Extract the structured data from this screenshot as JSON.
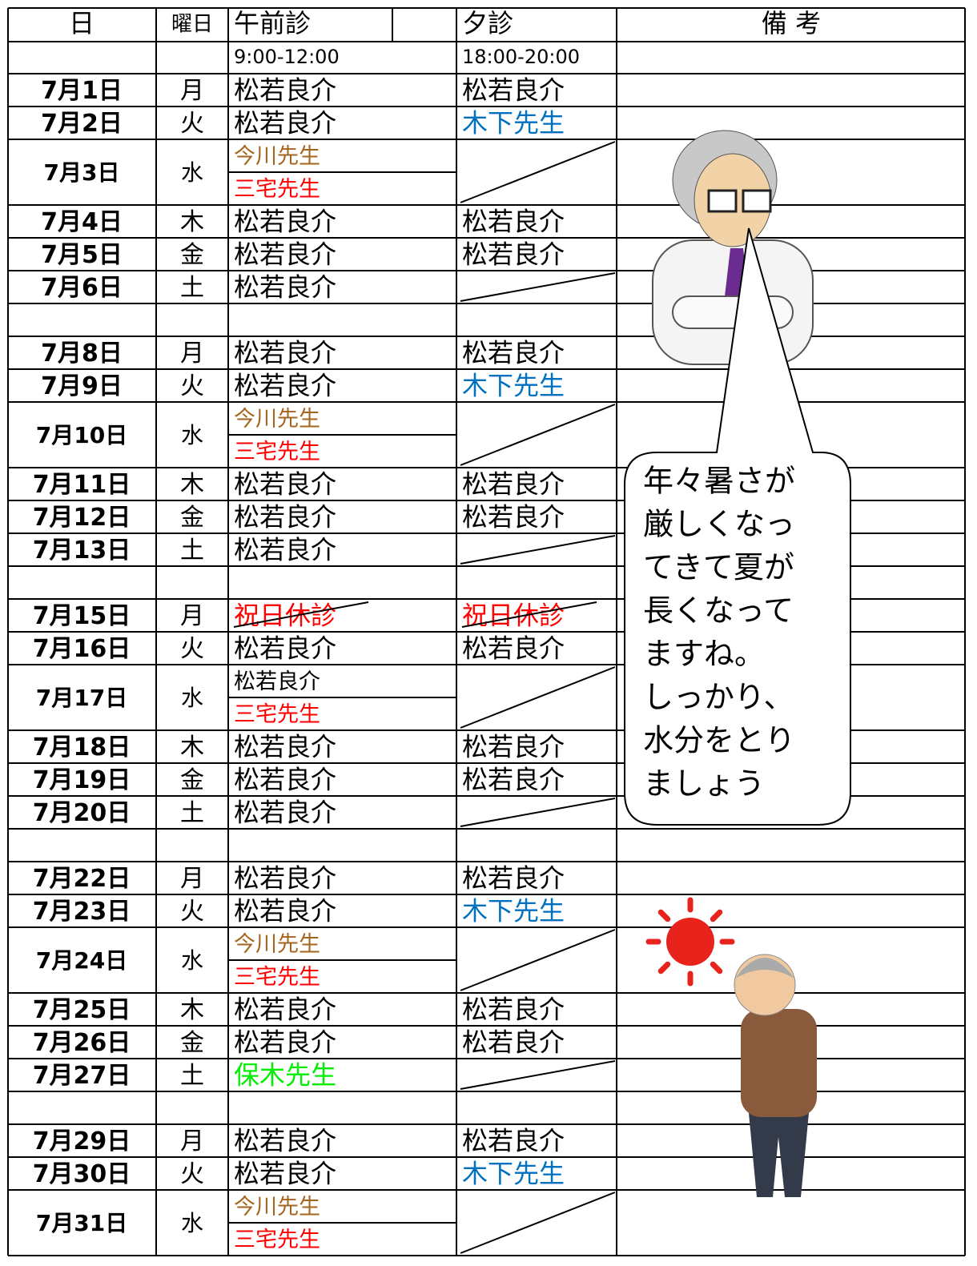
{
  "header": {
    "date": "日",
    "day": "曜日",
    "am": "午前診",
    "pm": "夕診",
    "note": "備 考"
  },
  "hours": {
    "am": "9:00-12:00",
    "pm": "18:00-20:00"
  },
  "rows": [
    {
      "date": "7月1日",
      "day": "月",
      "am": [
        {
          "text": "松若良介"
        }
      ],
      "pm": {
        "text": "松若良介"
      }
    },
    {
      "date": "7月2日",
      "day": "火",
      "am": [
        {
          "text": "松若良介"
        }
      ],
      "pm": {
        "text": "木下先生",
        "color": "#0070c0"
      }
    },
    {
      "date": "7月3日",
      "day": "水",
      "am": [
        {
          "text": "今川先生",
          "color": "#a5651c"
        },
        {
          "text": "三宅先生",
          "color": "#ff0000"
        }
      ],
      "pm": null
    },
    {
      "date": "7月4日",
      "day": "木",
      "am": [
        {
          "text": "松若良介"
        }
      ],
      "pm": {
        "text": "松若良介"
      }
    },
    {
      "date": "7月5日",
      "day": "金",
      "am": [
        {
          "text": "松若良介"
        }
      ],
      "pm": {
        "text": "松若良介"
      }
    },
    {
      "date": "7月6日",
      "day": "土",
      "am": [
        {
          "text": "松若良介"
        }
      ],
      "pm": null
    },
    null,
    {
      "date": "7月8日",
      "day": "月",
      "am": [
        {
          "text": "松若良介"
        }
      ],
      "pm": {
        "text": "松若良介"
      }
    },
    {
      "date": "7月9日",
      "day": "火",
      "am": [
        {
          "text": "松若良介"
        }
      ],
      "pm": {
        "text": "木下先生",
        "color": "#0070c0"
      }
    },
    {
      "date": "7月10日",
      "day": "水",
      "am": [
        {
          "text": "今川先生",
          "color": "#a5651c"
        },
        {
          "text": "三宅先生",
          "color": "#ff0000"
        }
      ],
      "pm": null
    },
    {
      "date": "7月11日",
      "day": "木",
      "am": [
        {
          "text": "松若良介"
        }
      ],
      "pm": {
        "text": "松若良介"
      }
    },
    {
      "date": "7月12日",
      "day": "金",
      "am": [
        {
          "text": "松若良介"
        }
      ],
      "pm": {
        "text": "松若良介"
      }
    },
    {
      "date": "7月13日",
      "day": "土",
      "am": [
        {
          "text": "松若良介"
        }
      ],
      "pm": null
    },
    null,
    {
      "date": "7月15日",
      "day": "月",
      "am": [
        {
          "text": "祝日休診",
          "color": "#ff0000",
          "strike": true
        }
      ],
      "pm": {
        "text": "祝日休診",
        "color": "#ff0000",
        "strike": true
      }
    },
    {
      "date": "7月16日",
      "day": "火",
      "am": [
        {
          "text": "松若良介"
        }
      ],
      "pm": {
        "text": "松若良介"
      }
    },
    {
      "date": "7月17日",
      "day": "水",
      "am": [
        {
          "text": "松若良介"
        },
        {
          "text": "三宅先生",
          "color": "#ff0000"
        }
      ],
      "pm": null
    },
    {
      "date": "7月18日",
      "day": "木",
      "am": [
        {
          "text": "松若良介"
        }
      ],
      "pm": {
        "text": "松若良介"
      }
    },
    {
      "date": "7月19日",
      "day": "金",
      "am": [
        {
          "text": "松若良介"
        }
      ],
      "pm": {
        "text": "松若良介"
      }
    },
    {
      "date": "7月20日",
      "day": "土",
      "am": [
        {
          "text": "松若良介"
        }
      ],
      "pm": null
    },
    null,
    {
      "date": "7月22日",
      "day": "月",
      "am": [
        {
          "text": "松若良介"
        }
      ],
      "pm": {
        "text": "松若良介"
      }
    },
    {
      "date": "7月23日",
      "day": "火",
      "am": [
        {
          "text": "松若良介"
        }
      ],
      "pm": {
        "text": "木下先生",
        "color": "#0070c0"
      }
    },
    {
      "date": "7月24日",
      "day": "水",
      "am": [
        {
          "text": "今川先生",
          "color": "#a5651c"
        },
        {
          "text": "三宅先生",
          "color": "#ff0000"
        }
      ],
      "pm": null
    },
    {
      "date": "7月25日",
      "day": "木",
      "am": [
        {
          "text": "松若良介"
        }
      ],
      "pm": {
        "text": "松若良介"
      }
    },
    {
      "date": "7月26日",
      "day": "金",
      "am": [
        {
          "text": "松若良介"
        }
      ],
      "pm": {
        "text": "松若良介"
      }
    },
    {
      "date": "7月27日",
      "day": "土",
      "am": [
        {
          "text": "保木先生",
          "color": "#00ee00"
        }
      ],
      "pm": null
    },
    null,
    {
      "date": "7月29日",
      "day": "月",
      "am": [
        {
          "text": "松若良介"
        }
      ],
      "pm": {
        "text": "松若良介"
      }
    },
    {
      "date": "7月30日",
      "day": "火",
      "am": [
        {
          "text": "松若良介"
        }
      ],
      "pm": {
        "text": "木下先生",
        "color": "#0070c0"
      }
    },
    {
      "date": "7月31日",
      "day": "水",
      "am": [
        {
          "text": "今川先生",
          "color": "#a5651c"
        },
        {
          "text": "三宅先生",
          "color": "#ff0000"
        }
      ],
      "pm": null
    }
  ],
  "bubble": {
    "lines": [
      "年々暑さが",
      "厳しくなっ",
      "てきて夏が",
      "長くなって",
      "ますね。",
      "しっかり、",
      "水分をとり",
      "ましょう"
    ]
  }
}
